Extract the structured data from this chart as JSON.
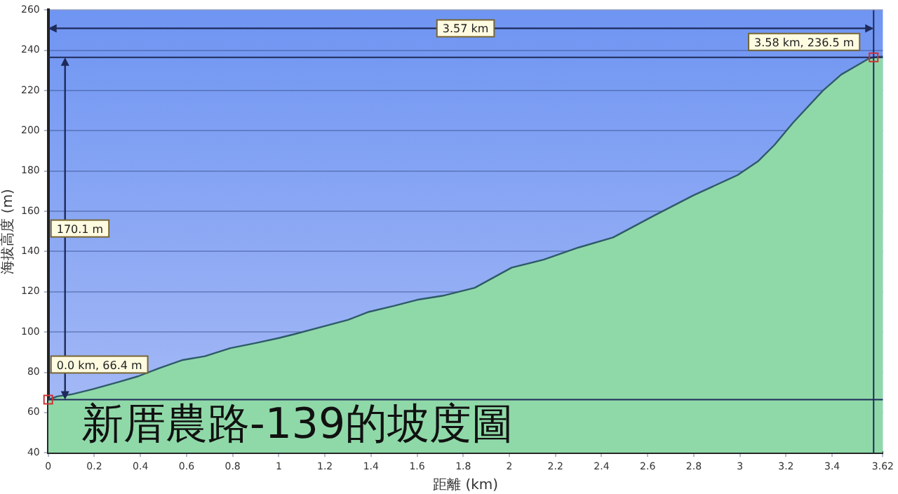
{
  "chart_data": {
    "type": "area",
    "title": "新厝農路-139的坡度圖",
    "xlabel": "距離 (km)",
    "ylabel": "海拔高度 (m)",
    "x": [
      0,
      0.04,
      0.1,
      0.19,
      0.3,
      0.39,
      0.48,
      0.58,
      0.68,
      0.79,
      0.9,
      1.0,
      1.07,
      1.2,
      1.3,
      1.39,
      1.5,
      1.6,
      1.71,
      1.85,
      2.01,
      2.15,
      2.3,
      2.45,
      2.63,
      2.8,
      2.99,
      3.08,
      3.15,
      3.23,
      3.36,
      3.44,
      3.5,
      3.56,
      3.58,
      3.62
    ],
    "series": [
      {
        "color": "#2f5a6a",
        "values": [
          66.4,
          68,
          69,
          71.5,
          75,
          78,
          82,
          86,
          88,
          92,
          94.5,
          97,
          99,
          103,
          106,
          110,
          113,
          116,
          118,
          122,
          132,
          136,
          142,
          147,
          158,
          168,
          178,
          185,
          193,
          204,
          220,
          228,
          232,
          236,
          236.5,
          237
        ]
      }
    ],
    "xlim": [
      0,
      3.62
    ],
    "xticks": [
      0,
      0.2,
      0.4,
      0.6,
      0.8,
      1.0,
      1.2,
      1.4,
      1.6,
      1.8,
      2.0,
      2.2,
      2.4,
      2.6,
      2.8,
      3.0,
      3.2,
      3.4,
      3.62
    ],
    "ylim": [
      40,
      260
    ],
    "yticks": [
      40,
      60,
      80,
      100,
      120,
      140,
      160,
      180,
      200,
      220,
      240,
      260
    ],
    "grid": "y",
    "legend": false,
    "marker": "none",
    "ref_lines": [
      {
        "axis": "y",
        "value": 236.5,
        "color": "#1e2a5a"
      },
      {
        "axis": "y",
        "value": 66.4,
        "color": "#1e2a5a"
      },
      {
        "axis": "x",
        "value": 3.58,
        "color": "#1e2a5a"
      }
    ],
    "annotations": [
      {
        "text": "0.0 km, 66.4 m",
        "x": 0,
        "y": 66.4
      },
      {
        "text": "3.58 km, 236.5 m",
        "x": 3.58,
        "y": 236.5
      },
      "170.1 m",
      "3.57 km"
    ]
  }
}
